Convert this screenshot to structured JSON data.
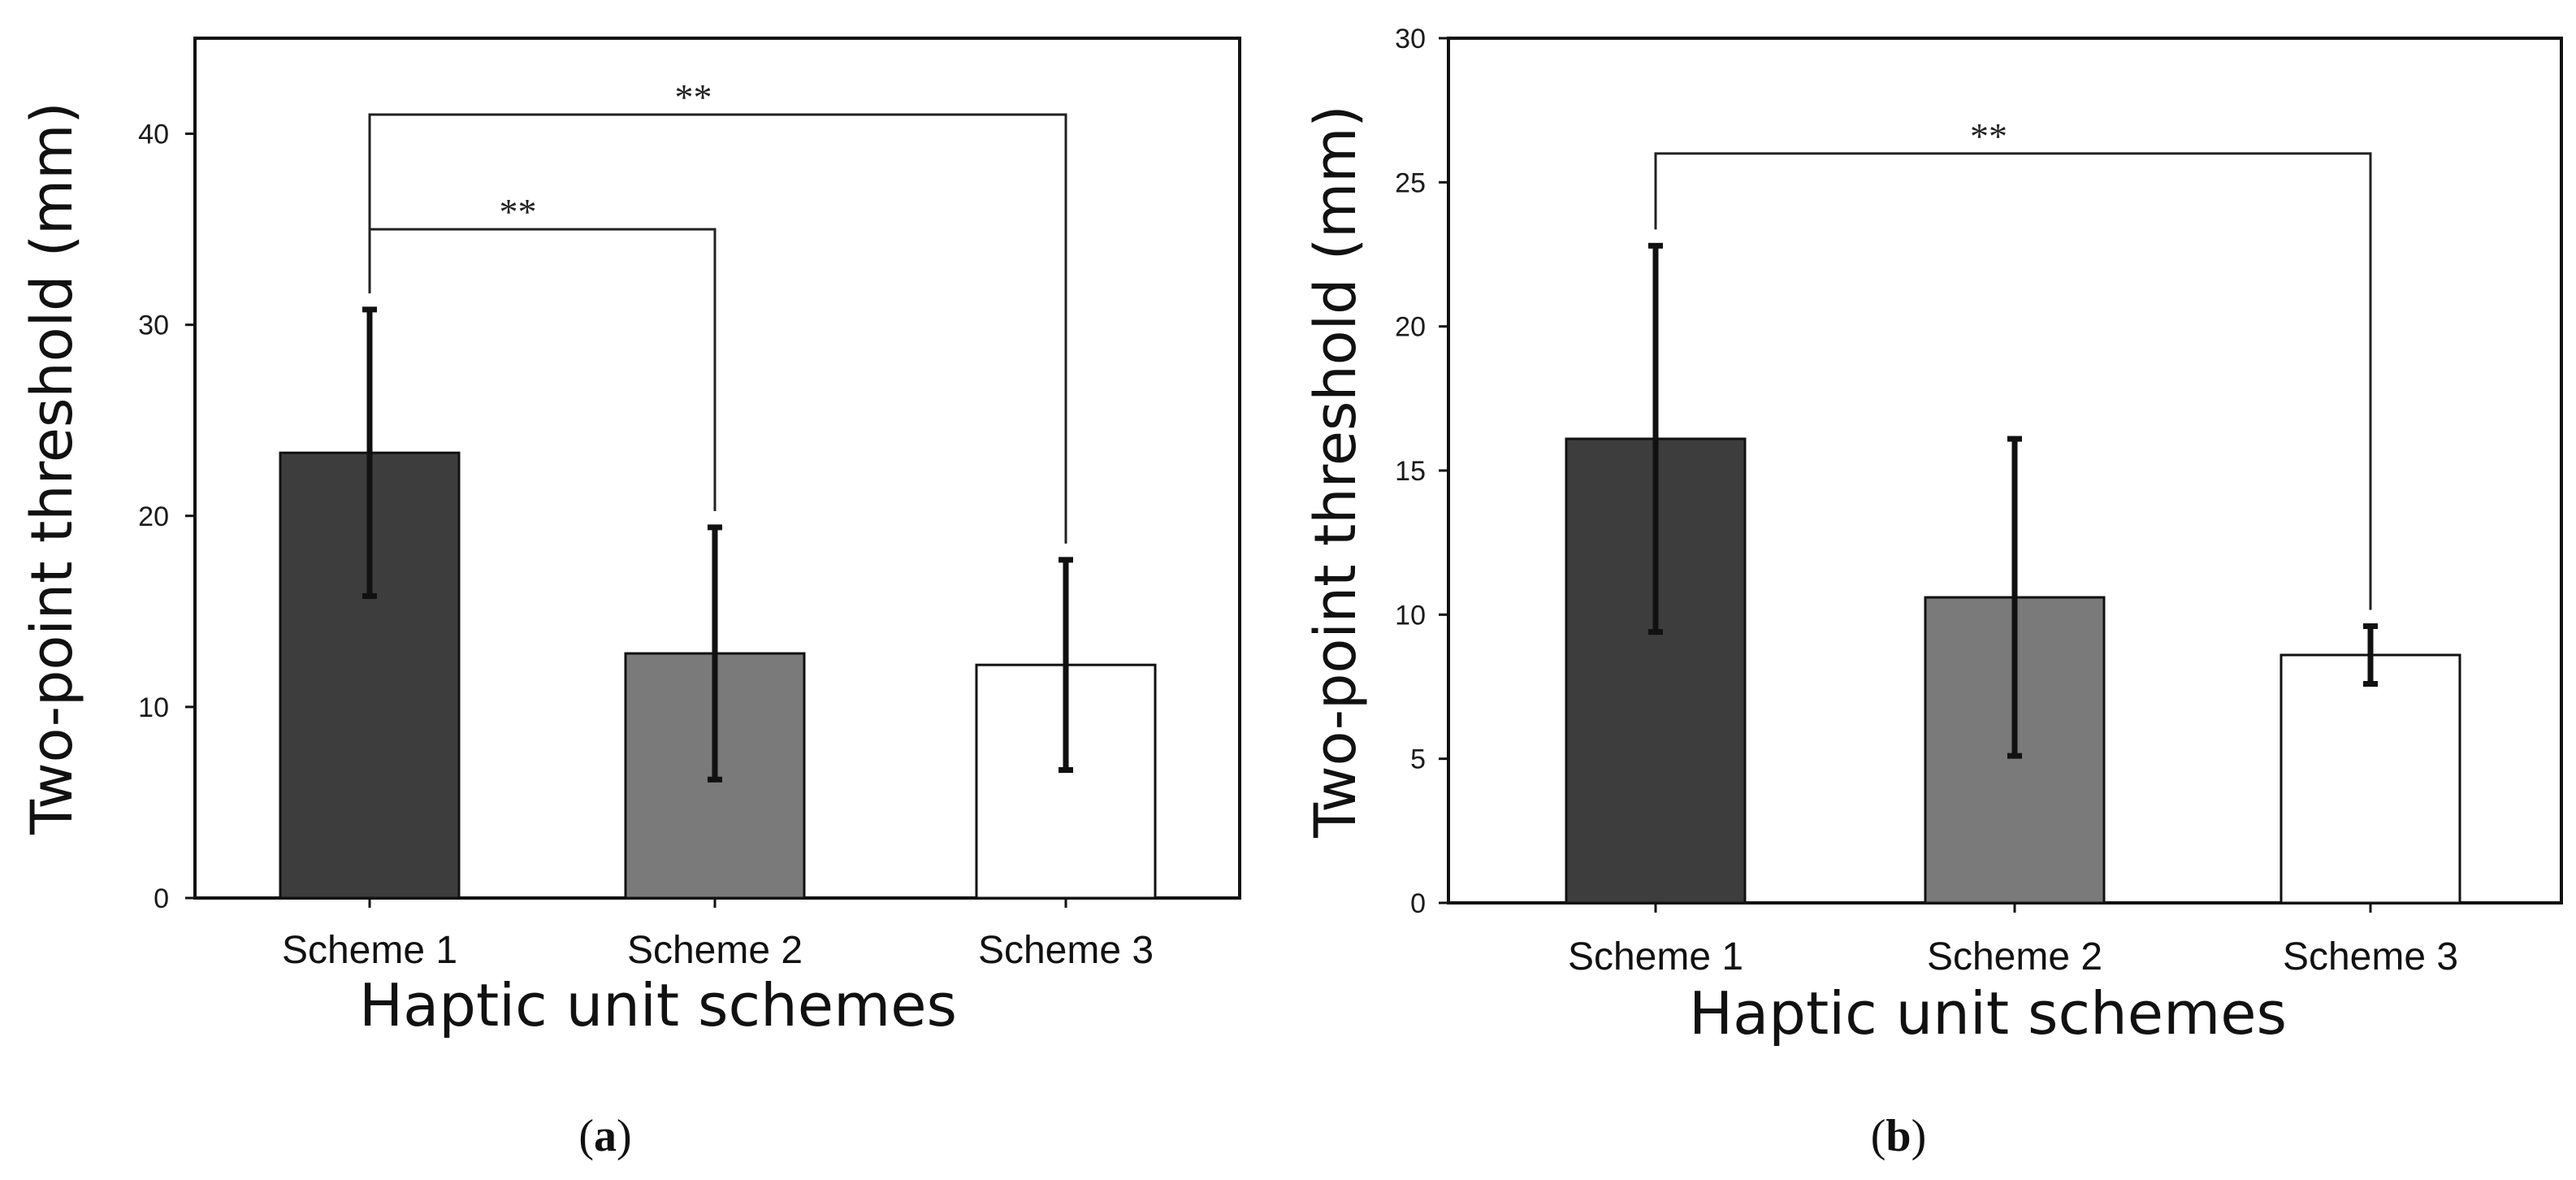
{
  "chart_data": [
    {
      "panel": "a",
      "caption_open": "(",
      "caption_label": "a",
      "caption_close": ")",
      "type": "bar",
      "categories": [
        "Scheme 1",
        "Scheme 2",
        "Scheme 3"
      ],
      "values": [
        23.3,
        12.8,
        12.2
      ],
      "errors": [
        7.5,
        6.6,
        5.5
      ],
      "colors": [
        "#3d3d3d",
        "#7a7a7a",
        "#ffffff"
      ],
      "xlabel": "Haptic unit schemes",
      "ylabel": "Two-point threshold (mm)",
      "ylim": [
        0,
        45
      ],
      "yticks": [
        "0",
        "10",
        "20",
        "30",
        "40"
      ],
      "significance": [
        {
          "from": 0,
          "to": 2,
          "label": "**",
          "level": 41
        },
        {
          "from": 0,
          "to": 1,
          "label": "**",
          "level": 35
        }
      ]
    },
    {
      "panel": "b",
      "caption_open": "(",
      "caption_label": "b",
      "caption_close": ")",
      "type": "bar",
      "categories": [
        "Scheme 1",
        "Scheme 2",
        "Scheme 3"
      ],
      "values": [
        16.1,
        10.6,
        8.6
      ],
      "errors": [
        6.7,
        5.5,
        1.0
      ],
      "colors": [
        "#3d3d3d",
        "#7a7a7a",
        "#ffffff"
      ],
      "xlabel": "Haptic unit schemes",
      "ylabel": "Two-point threshold (mm)",
      "ylim": [
        0,
        30
      ],
      "yticks": [
        "0",
        "5",
        "10",
        "15",
        "20",
        "25",
        "30"
      ],
      "significance": [
        {
          "from": 0,
          "to": 2,
          "label": "**",
          "level": 26
        }
      ]
    }
  ]
}
